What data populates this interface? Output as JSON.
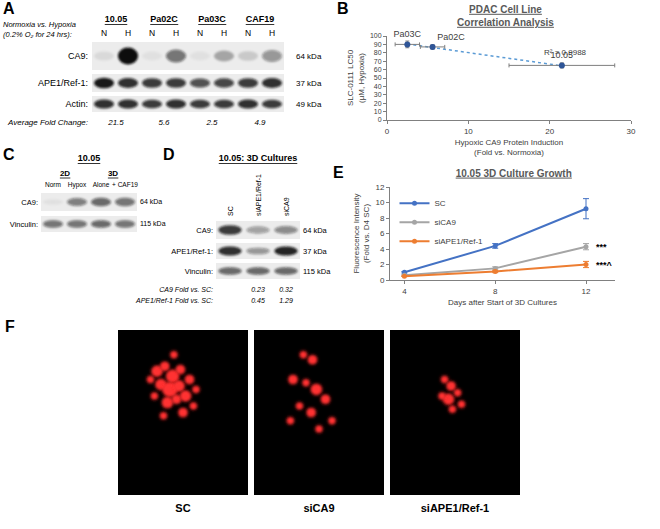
{
  "panel_letters": [
    "A",
    "B",
    "C",
    "D",
    "E",
    "F"
  ],
  "blots": {
    "A": {
      "header": [
        "Normoxia vs. Hypoxia",
        "(0.2% O₂ for 24 hrs):"
      ],
      "groups": [
        {
          "label": "10.05",
          "lanes": [
            "N",
            "H"
          ]
        },
        {
          "label": "Pa02C",
          "lanes": [
            "N",
            "H"
          ]
        },
        {
          "label": "Pa03C",
          "lanes": [
            "N",
            "H"
          ]
        },
        {
          "label": "CAF19",
          "lanes": [
            "N",
            "H"
          ]
        }
      ],
      "rows": [
        {
          "label": "CA9:",
          "kda": "64 kDa",
          "intensity": [
            0.08,
            1,
            0.05,
            0.55,
            0.05,
            0.3,
            0.15,
            0.4
          ]
        },
        {
          "label": "APE1/Ref-1:",
          "kda": "37 kDa",
          "intensity": [
            0.95,
            0.85,
            0.8,
            0.8,
            0.7,
            0.75,
            0.8,
            0.85
          ]
        },
        {
          "label": "Actin:",
          "kda": "49 kDa",
          "intensity": [
            0.85,
            0.85,
            0.8,
            0.85,
            0.8,
            0.8,
            0.85,
            0.8
          ]
        }
      ],
      "fold_label": "Average Fold Change:",
      "fold_values": [
        21.5,
        5.6,
        2.5,
        4.9
      ]
    },
    "C": {
      "title": "10.05",
      "groups": [
        {
          "label": "2D",
          "lanes": [
            "Norm",
            "Hypox"
          ]
        },
        {
          "label": "3D",
          "lanes": [
            "Alone",
            "+ CAF19"
          ]
        }
      ],
      "rows": [
        {
          "label": "CA9:",
          "kda": "64 kDa",
          "intensity": [
            0.05,
            0.5,
            0.6,
            0.55
          ]
        },
        {
          "label": "Vinculin:",
          "kda": "115 kDa",
          "intensity": [
            0.55,
            0.55,
            0.6,
            0.55
          ]
        }
      ]
    },
    "D": {
      "title": "10.05: 3D Cultures",
      "lanes": [
        "SC",
        "siAPE1/Ref-1",
        "siCA9"
      ],
      "rows": [
        {
          "label": "CA9:",
          "kda": "64 kDa",
          "intensity": [
            0.8,
            0.35,
            0.45
          ]
        },
        {
          "label": "APE1/Ref-1:",
          "kda": "37 kDa",
          "intensity": [
            0.85,
            0.4,
            0.9
          ]
        },
        {
          "label": "Vinculin:",
          "kda": "115 kDa",
          "intensity": [
            0.6,
            0.6,
            0.6
          ]
        }
      ],
      "folds": [
        {
          "label": "CA9 Fold vs. SC:",
          "values": [
            0.23,
            0.32
          ]
        },
        {
          "label": "APE1/Ref-1 Fold vs. SC:",
          "values": [
            0.45,
            1.29
          ]
        }
      ]
    }
  },
  "images": {
    "F": [
      "SC",
      "siCA9",
      "siAPE1/Ref-1"
    ]
  },
  "chart_data": [
    {
      "type": "scatter",
      "title": [
        "PDAC Cell Line",
        "Correlation Analysis"
      ],
      "x_label": [
        "Hypoxic CA9 Protein Induction",
        "(Fold vs. Normoxia)"
      ],
      "y_label": [
        "SLC-0111 LC50",
        "(µM, Hypoxia)"
      ],
      "x": [
        2.5,
        5.6,
        21.5
      ],
      "values": [
        90,
        87,
        65
      ],
      "x_error": [
        1.5,
        1.5,
        6.5
      ],
      "y_error": [
        4,
        2.5,
        3
      ],
      "point_labels": [
        "Pa03C",
        "Pa02C",
        "10.05"
      ],
      "color": "#2f5597",
      "marker": "circle",
      "trendline": {
        "x": [
          2.5,
          21.5
        ],
        "values": [
          90.5,
          64.5
        ],
        "color": "#5b9bd5",
        "line_style": "dot"
      },
      "annotations": [
        {
          "text": "R² = 0.9988",
          "x": 19,
          "y": 80
        }
      ],
      "xlim": [
        0,
        30
      ],
      "xticks": [
        0,
        10,
        20,
        30
      ],
      "ylim": [
        0,
        100
      ],
      "yticks": [
        0,
        10,
        20,
        30,
        40,
        50,
        60,
        70,
        80,
        90,
        100
      ],
      "grid": false
    },
    {
      "type": "line",
      "title": "10.05 3D Culture Growth",
      "x_label": "Days after Start of 3D Cultures",
      "y_label": [
        "Fluorescence Intensity",
        "(Fold vs. D4 SC)"
      ],
      "categories": [
        "4",
        "8",
        "12"
      ],
      "series": [
        {
          "name": "SC",
          "color": "#4472c4",
          "values": [
            1,
            4.4,
            9.2
          ],
          "errors": [
            0.1,
            0.3,
            1.3
          ]
        },
        {
          "name": "siCA9",
          "color": "#a5a5a5",
          "values": [
            0.6,
            1.5,
            4.3
          ],
          "errors": [
            0.1,
            0.2,
            0.4
          ]
        },
        {
          "name": "siAPE1/Ref-1",
          "color": "#ed7d31",
          "values": [
            0.5,
            1.1,
            2.0
          ],
          "errors": [
            0.05,
            0.15,
            0.4
          ]
        }
      ],
      "annotations": [
        {
          "text": "***",
          "x": "12",
          "y": 4.3
        },
        {
          "text": "***^",
          "x": "12",
          "y": 2.0
        }
      ],
      "ylim": [
        0,
        12
      ],
      "yticks": [
        0,
        2,
        4,
        6,
        8,
        10,
        12
      ],
      "legend": "top-left",
      "marker": "circle",
      "grid": false
    }
  ]
}
